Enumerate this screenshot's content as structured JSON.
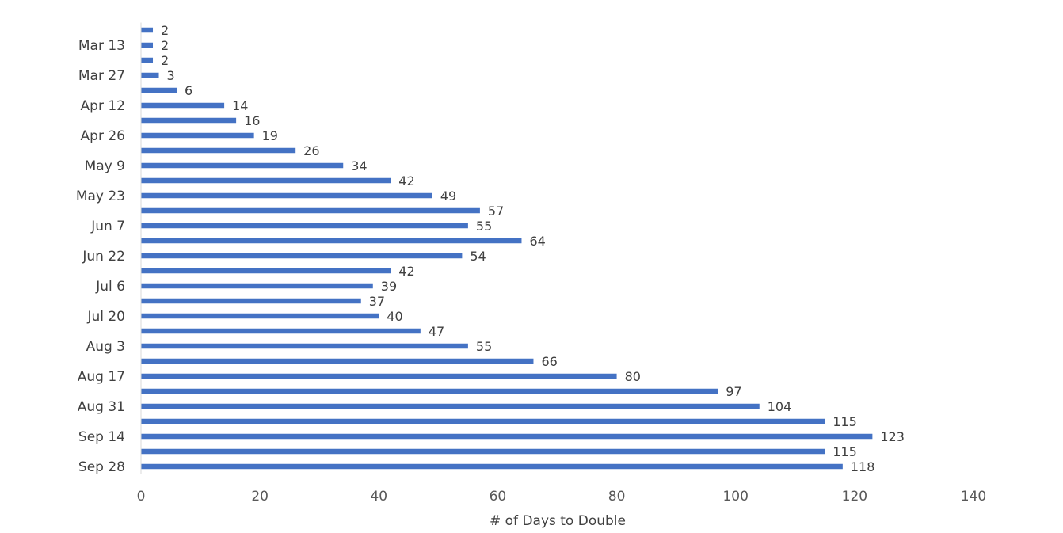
{
  "chart_data": {
    "type": "bar",
    "orientation": "horizontal",
    "title": "",
    "xlabel": "# of Days to Double",
    "ylabel": "",
    "xlim": [
      0,
      140
    ],
    "x_ticks": [
      0,
      20,
      40,
      60,
      80,
      100,
      120,
      140
    ],
    "categories": [
      "",
      "Mar 13",
      "",
      "Mar 27",
      "",
      "Apr 12",
      "",
      "Apr 26",
      "",
      "May 9",
      "",
      "May 23",
      "",
      "Jun 7",
      "",
      "Jun 22",
      "",
      "Jul 6",
      "",
      "Jul 20",
      "",
      "Aug 3",
      "",
      "Aug 17",
      "",
      "Aug 31",
      "",
      "Sep 14",
      "",
      "Sep 28"
    ],
    "values": [
      2,
      2,
      2,
      3,
      6,
      14,
      16,
      19,
      26,
      34,
      42,
      49,
      57,
      55,
      64,
      54,
      42,
      39,
      37,
      40,
      47,
      55,
      66,
      80,
      97,
      104,
      115,
      123,
      115,
      118
    ],
    "data_labels": true,
    "bar_color": "#4472c4",
    "grid": false,
    "legend": "none"
  }
}
